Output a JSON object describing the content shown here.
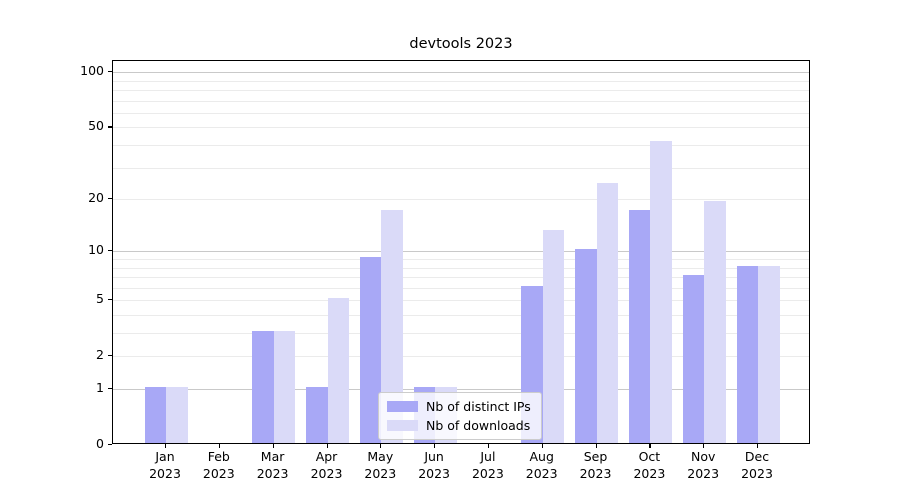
{
  "title": "devtools 2023",
  "x_axis": {
    "months": [
      "Jan",
      "Feb",
      "Mar",
      "Apr",
      "May",
      "Jun",
      "Jul",
      "Aug",
      "Sep",
      "Oct",
      "Nov",
      "Dec"
    ],
    "year": "2023"
  },
  "y_axis": {
    "tick_labels": [
      "0",
      "1",
      "2",
      "5",
      "10",
      "20",
      "50",
      "100"
    ]
  },
  "legend": {
    "items": [
      {
        "label": "Nb of distinct IPs",
        "series": "ips"
      },
      {
        "label": "Nb of downloads",
        "series": "downloads"
      }
    ]
  },
  "colors": {
    "ips": "#a8a8f6",
    "downloads": "#dadaf8",
    "grid_major": "#c9c9c9",
    "grid_minor": "#ebebeb",
    "axis": "#000000",
    "legend_border": "#cccccc"
  },
  "chart_data": {
    "type": "bar",
    "title": "devtools 2023",
    "categories": [
      "Jan 2023",
      "Feb 2023",
      "Mar 2023",
      "Apr 2023",
      "May 2023",
      "Jun 2023",
      "Jul 2023",
      "Aug 2023",
      "Sep 2023",
      "Oct 2023",
      "Nov 2023",
      "Dec 2023"
    ],
    "series": [
      {
        "name": "Nb of distinct IPs",
        "values": [
          1,
          0,
          3,
          1,
          9,
          1,
          0,
          6,
          10,
          17,
          7,
          8
        ]
      },
      {
        "name": "Nb of downloads",
        "values": [
          1,
          0,
          3,
          5,
          17,
          1,
          0,
          13,
          24,
          41,
          19,
          8
        ]
      }
    ],
    "xlabel": "",
    "ylabel": "",
    "yscale": "log1p",
    "ylim": [
      0,
      115
    ],
    "yticks": [
      0,
      1,
      2,
      5,
      10,
      20,
      50,
      100
    ],
    "major_gridlines": [
      1,
      10,
      100
    ],
    "minor_gridlines": [
      2,
      3,
      4,
      5,
      6,
      7,
      8,
      9,
      20,
      30,
      40,
      50,
      60,
      70,
      80,
      90
    ],
    "grid": true,
    "legend_position": "lower-center-inside"
  }
}
